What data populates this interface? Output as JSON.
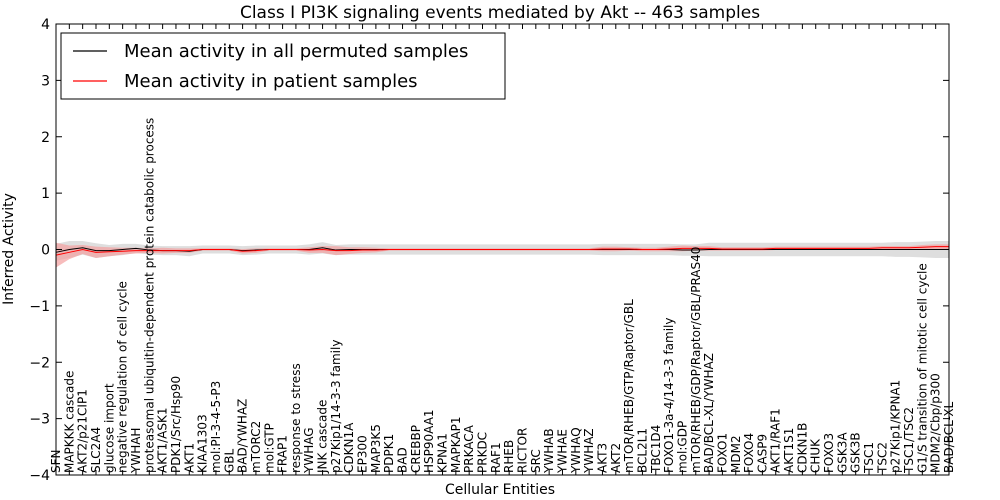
{
  "chart_data": {
    "type": "line",
    "title": "Class I PI3K signaling events mediated by Akt -- 463 samples",
    "xlabel": "Cellular Entities",
    "ylabel": "Inferred Activity",
    "ylim": [
      -4,
      4
    ],
    "yticks": [
      "4",
      "3",
      "2",
      "1",
      "0",
      "−1",
      "−2",
      "−3",
      "−4"
    ],
    "ytick_values": [
      4,
      3,
      2,
      1,
      0,
      -1,
      -2,
      -3,
      -4
    ],
    "legend_position": "top-left",
    "grid": false,
    "categories": [
      "SFN",
      "MAPKKK cascade",
      "AKT2/p21CIP1",
      "SLC2A4",
      "glucose import",
      "negative regulation of cell cycle",
      "YWHAH",
      "proteasomal ubiquitin-dependent protein catabolic process",
      "AKT1/ASK1",
      "PDK1/Src/Hsp90",
      "AKT1",
      "KIAA1303",
      "mol:PI-3-4-5-P3",
      "GBL",
      "BAD/YWHAZ",
      "mTORC2",
      "mol:GTP",
      "FRAP1",
      "response to stress",
      "YWHAG",
      "JNK cascade",
      "p27Kip1/14-3-3 family",
      "CDKN1A",
      "EP300",
      "MAP3K5",
      "PDPK1",
      "BAD",
      "CREBBP",
      "HSP90AA1",
      "KPNA1",
      "MAPKAP1",
      "PRKACA",
      "PRKDC",
      "RAF1",
      "RHEB",
      "RICTOR",
      "SRC",
      "YWHAB",
      "YWHAE",
      "YWHAQ",
      "YWHAZ",
      "AKT3",
      "AKT2",
      "mTOR/RHEB/GTP/Raptor/GBL",
      "BCL2L1",
      "TBC1D4",
      "FOXO1-3a-4/14-3-3 family",
      "mol:GDP",
      "mTOR/RHEB/GDP/Raptor/GBL/PRAS40",
      "BAD/BCL-XL/YWHAZ",
      "FOXO1",
      "MDM2",
      "FOXO4",
      "CASP9",
      "AKT1/RAF1",
      "AKT1S1",
      "CDKN1B",
      "CHUK",
      "FOXO3",
      "GSK3A",
      "GSK3B",
      "TSC1",
      "TSC2",
      "p27Kip1/KPNA1",
      "TSC1/TSC2",
      "G1/S transition of mitotic cell cycle",
      "MDM2/Cbp/p300",
      "BAD/BCL-XL"
    ],
    "series": [
      {
        "name": "Mean activity in all permuted samples",
        "color": "#000000",
        "band_color": "#cccccc",
        "values": [
          -0.05,
          0.0,
          0.03,
          -0.02,
          -0.02,
          0.0,
          0.02,
          -0.01,
          -0.02,
          -0.02,
          -0.03,
          0.0,
          0.0,
          0.0,
          -0.02,
          -0.01,
          0.0,
          0.0,
          0.0,
          0.0,
          0.03,
          -0.01,
          0.0,
          0.0,
          0.0,
          0.0,
          0.0,
          0.0,
          0.0,
          0.0,
          0.0,
          0.0,
          0.0,
          0.0,
          0.0,
          0.0,
          0.0,
          0.0,
          0.0,
          0.0,
          0.0,
          0.0,
          0.0,
          0.0,
          0.0,
          0.0,
          0.0,
          -0.01,
          -0.01,
          0.0,
          0.0,
          0.0,
          0.0,
          0.0,
          0.0,
          0.0,
          0.0,
          0.0,
          0.0,
          0.0,
          0.0,
          0.0,
          0.0,
          0.0,
          0.0,
          0.0,
          0.0,
          0.0
        ],
        "band_half_width": [
          0.15,
          0.15,
          0.12,
          0.13,
          0.1,
          0.1,
          0.08,
          0.08,
          0.08,
          0.08,
          0.09,
          0.07,
          0.07,
          0.07,
          0.08,
          0.08,
          0.07,
          0.07,
          0.07,
          0.09,
          0.1,
          0.09,
          0.09,
          0.09,
          0.09,
          0.09,
          0.09,
          0.09,
          0.09,
          0.09,
          0.09,
          0.09,
          0.09,
          0.09,
          0.09,
          0.09,
          0.09,
          0.09,
          0.09,
          0.09,
          0.09,
          0.1,
          0.1,
          0.1,
          0.1,
          0.1,
          0.1,
          0.1,
          0.1,
          0.12,
          0.12,
          0.12,
          0.12,
          0.12,
          0.12,
          0.12,
          0.12,
          0.12,
          0.12,
          0.12,
          0.12,
          0.12,
          0.12,
          0.13,
          0.13,
          0.14,
          0.15,
          0.15
        ]
      },
      {
        "name": "Mean activity in patient samples",
        "color": "#ff0000",
        "band_color": "#f4a0a0",
        "values": [
          -0.1,
          -0.05,
          0.0,
          -0.05,
          -0.04,
          -0.03,
          -0.02,
          -0.02,
          -0.02,
          -0.02,
          -0.02,
          0.0,
          0.0,
          0.0,
          -0.03,
          -0.02,
          0.0,
          0.0,
          0.0,
          -0.01,
          0.0,
          -0.02,
          -0.02,
          -0.01,
          -0.01,
          0.0,
          0.0,
          0.0,
          0.0,
          0.0,
          0.0,
          0.0,
          0.0,
          0.0,
          0.0,
          0.0,
          0.0,
          0.0,
          0.0,
          0.0,
          0.0,
          0.01,
          0.01,
          0.01,
          0.0,
          0.0,
          0.01,
          0.02,
          0.02,
          0.02,
          0.01,
          0.01,
          0.01,
          0.01,
          0.02,
          0.02,
          0.02,
          0.02,
          0.02,
          0.02,
          0.02,
          0.02,
          0.03,
          0.03,
          0.03,
          0.04,
          0.05,
          0.05
        ],
        "band_half_width": [
          0.22,
          0.12,
          0.08,
          0.1,
          0.08,
          0.06,
          0.05,
          0.04,
          0.05,
          0.04,
          0.04,
          0.02,
          0.02,
          0.02,
          0.04,
          0.04,
          0.02,
          0.02,
          0.02,
          0.05,
          0.06,
          0.08,
          0.06,
          0.05,
          0.04,
          0.02,
          0.02,
          0.02,
          0.02,
          0.02,
          0.02,
          0.02,
          0.02,
          0.02,
          0.02,
          0.02,
          0.02,
          0.02,
          0.02,
          0.02,
          0.02,
          0.04,
          0.04,
          0.03,
          0.03,
          0.03,
          0.04,
          0.05,
          0.04,
          0.04,
          0.03,
          0.03,
          0.03,
          0.03,
          0.03,
          0.03,
          0.03,
          0.03,
          0.03,
          0.03,
          0.03,
          0.03,
          0.03,
          0.03,
          0.03,
          0.04,
          0.04,
          0.04
        ]
      }
    ]
  }
}
